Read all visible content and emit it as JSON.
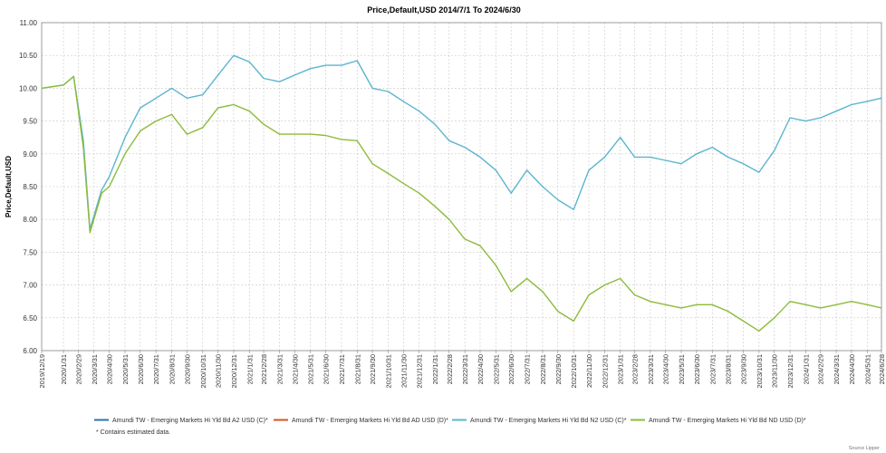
{
  "chart_data": {
    "type": "line",
    "title": "Price,Default,USD 2014/7/1 To 2024/6/30",
    "ylabel": "Price,Default,USD",
    "ylim": [
      6.0,
      11.0
    ],
    "yticks": [
      "6.00",
      "6.50",
      "7.00",
      "7.50",
      "8.00",
      "8.50",
      "9.00",
      "9.50",
      "10.00",
      "10.50",
      "11.00"
    ],
    "xticks": [
      "2019/12/19",
      "2020/1/31",
      "2020/2/29",
      "2020/3/31",
      "2020/4/30",
      "2020/5/31",
      "2020/6/30",
      "2020/7/31",
      "2020/8/31",
      "2020/9/30",
      "2020/10/31",
      "2020/11/30",
      "2020/12/31",
      "2021/1/31",
      "2021/2/28",
      "2021/3/31",
      "2021/4/30",
      "2021/5/31",
      "2021/6/30",
      "2021/7/31",
      "2021/8/31",
      "2021/9/30",
      "2021/10/31",
      "2021/11/30",
      "2021/12/31",
      "2022/1/31",
      "2022/2/28",
      "2022/3/31",
      "2022/4/30",
      "2022/5/31",
      "2022/6/30",
      "2022/7/31",
      "2022/8/31",
      "2022/9/30",
      "2022/10/31",
      "2022/11/30",
      "2022/12/31",
      "2023/1/31",
      "2023/2/28",
      "2023/3/31",
      "2023/4/30",
      "2023/5/31",
      "2023/6/30",
      "2023/7/31",
      "2023/8/31",
      "2023/9/30",
      "2023/10/31",
      "2023/11/30",
      "2023/12/31",
      "2024/1/31",
      "2024/2/29",
      "2024/3/31",
      "2024/4/30",
      "2024/5/31",
      "2024/6/28"
    ],
    "grid": true,
    "legend_position": "bottom",
    "note": "* Contains estimated data.",
    "source": "Source Lipper",
    "series": [
      {
        "name": "Amundi TW - Emerging Markets Hi Yld Bd A2 USD (C)*",
        "color": "#2f6fb2",
        "x": [],
        "y": []
      },
      {
        "name": "Amundi TW - Emerging Markets Hi Yld Bd AD USD (D)*",
        "color": "#d9531e",
        "x": [],
        "y": []
      },
      {
        "name": "Amundi TW - Emerging Markets Hi Yld Bd N2 USD (C)*",
        "color": "#5bb5cf",
        "x": [
          "2019/12/19",
          "2020/1/31",
          "2020/2/20",
          "2020/3/10",
          "2020/3/23",
          "2020/4/15",
          "2020/4/30",
          "2020/5/31",
          "2020/6/30",
          "2020/7/31",
          "2020/8/31",
          "2020/9/30",
          "2020/10/31",
          "2020/11/30",
          "2020/12/31",
          "2021/1/31",
          "2021/2/28",
          "2021/3/31",
          "2021/4/30",
          "2021/5/31",
          "2021/6/30",
          "2021/7/31",
          "2021/8/31",
          "2021/9/30",
          "2021/10/31",
          "2021/11/30",
          "2021/12/31",
          "2022/1/31",
          "2022/2/28",
          "2022/3/31",
          "2022/4/30",
          "2022/5/31",
          "2022/6/30",
          "2022/7/31",
          "2022/8/31",
          "2022/9/30",
          "2022/10/31",
          "2022/11/30",
          "2022/12/31",
          "2023/1/31",
          "2023/2/28",
          "2023/3/31",
          "2023/4/30",
          "2023/5/31",
          "2023/6/30",
          "2023/7/31",
          "2023/8/31",
          "2023/9/30",
          "2023/10/31",
          "2023/11/30",
          "2023/12/31",
          "2024/1/31",
          "2024/2/29",
          "2024/3/31",
          "2024/4/30",
          "2024/5/31",
          "2024/6/28"
        ],
        "y": [
          10.0,
          10.05,
          10.18,
          9.2,
          7.85,
          8.45,
          8.65,
          9.25,
          9.7,
          9.85,
          10.0,
          9.85,
          9.9,
          10.2,
          10.5,
          10.4,
          10.15,
          10.1,
          10.2,
          10.3,
          10.35,
          10.35,
          10.42,
          10.0,
          9.95,
          9.8,
          9.65,
          9.45,
          9.2,
          9.1,
          8.95,
          8.75,
          8.4,
          8.75,
          8.5,
          8.3,
          8.15,
          8.75,
          8.95,
          9.25,
          8.95,
          8.95,
          8.9,
          8.85,
          9.0,
          9.1,
          8.95,
          8.85,
          8.72,
          9.05,
          9.55,
          9.5,
          9.55,
          9.65,
          9.75,
          9.8,
          9.85
        ]
      },
      {
        "name": "Amundi TW - Emerging Markets Hi Yld Bd ND USD (D)*",
        "color": "#8dbb3a",
        "x": [
          "2019/12/19",
          "2020/1/31",
          "2020/2/20",
          "2020/3/10",
          "2020/3/23",
          "2020/4/15",
          "2020/4/30",
          "2020/5/31",
          "2020/6/30",
          "2020/7/31",
          "2020/8/31",
          "2020/9/30",
          "2020/10/31",
          "2020/11/30",
          "2020/12/31",
          "2021/1/31",
          "2021/2/28",
          "2021/3/31",
          "2021/4/30",
          "2021/5/31",
          "2021/6/30",
          "2021/7/31",
          "2021/8/31",
          "2021/9/30",
          "2021/10/31",
          "2021/11/30",
          "2021/12/31",
          "2022/1/31",
          "2022/2/28",
          "2022/3/31",
          "2022/4/30",
          "2022/5/31",
          "2022/6/30",
          "2022/7/31",
          "2022/8/31",
          "2022/9/30",
          "2022/10/31",
          "2022/11/30",
          "2022/12/31",
          "2023/1/31",
          "2023/2/28",
          "2023/3/31",
          "2023/4/30",
          "2023/5/31",
          "2023/6/30",
          "2023/7/31",
          "2023/8/31",
          "2023/9/30",
          "2023/10/31",
          "2023/11/30",
          "2023/12/31",
          "2024/1/31",
          "2024/2/29",
          "2024/3/31",
          "2024/4/30",
          "2024/5/31",
          "2024/6/28"
        ],
        "y": [
          10.0,
          10.05,
          10.18,
          9.1,
          7.8,
          8.4,
          8.5,
          9.0,
          9.35,
          9.5,
          9.6,
          9.3,
          9.4,
          9.7,
          9.75,
          9.65,
          9.45,
          9.3,
          9.3,
          9.3,
          9.28,
          9.22,
          9.2,
          8.85,
          8.7,
          8.55,
          8.4,
          8.2,
          8.0,
          7.7,
          7.6,
          7.3,
          6.9,
          7.1,
          6.9,
          6.6,
          6.45,
          6.85,
          7.0,
          7.1,
          6.85,
          6.75,
          6.7,
          6.65,
          6.7,
          6.7,
          6.6,
          6.45,
          6.3,
          6.5,
          6.75,
          6.7,
          6.65,
          6.7,
          6.75,
          6.7,
          6.65
        ]
      }
    ]
  }
}
